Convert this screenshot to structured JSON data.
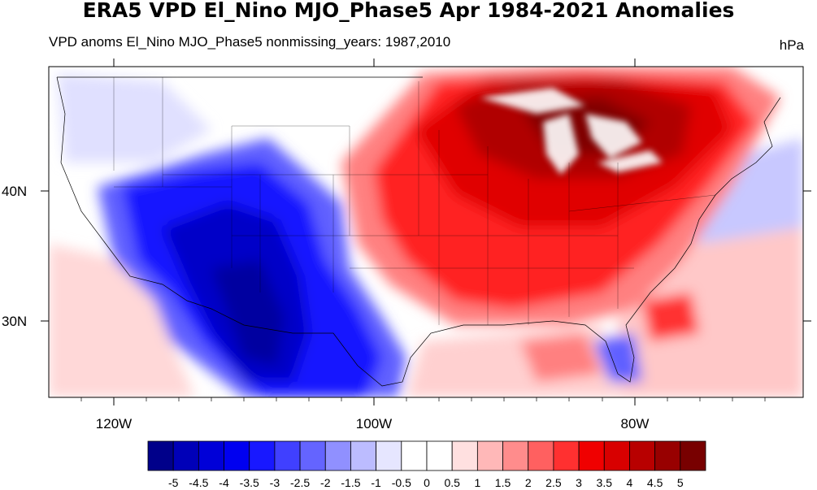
{
  "title": "ERA5 VPD El_Nino MJO_Phase5 Apr 1984-2021 Anomalies",
  "subtitle": "VPD anoms El_Nino MJO_Phase5 nonmissing_years: 1987,2010",
  "units": "hPa",
  "map": {
    "lat_labels": [
      "40N",
      "30N"
    ],
    "lon_labels": [
      "120W",
      "100W",
      "80W"
    ]
  },
  "colorbar": {
    "colors": [
      "#00008a",
      "#0000b8",
      "#0000d8",
      "#0000f0",
      "#1818ff",
      "#4040ff",
      "#6464ff",
      "#9090ff",
      "#bcbcff",
      "#e6e6ff",
      "#ffffff",
      "#ffffff",
      "#ffe0e0",
      "#ffb8b8",
      "#ff8c8c",
      "#ff6060",
      "#ff3030",
      "#f00000",
      "#d80000",
      "#b80000",
      "#980000",
      "#780000"
    ],
    "labels": [
      "-5",
      "-4.5",
      "-4",
      "-3.5",
      "-3",
      "-2.5",
      "-2",
      "-1.5",
      "-1",
      "-0.5",
      "0",
      "0.5",
      "1",
      "1.5",
      "2",
      "2.5",
      "3",
      "3.5",
      "4",
      "4.5",
      "5"
    ]
  }
}
